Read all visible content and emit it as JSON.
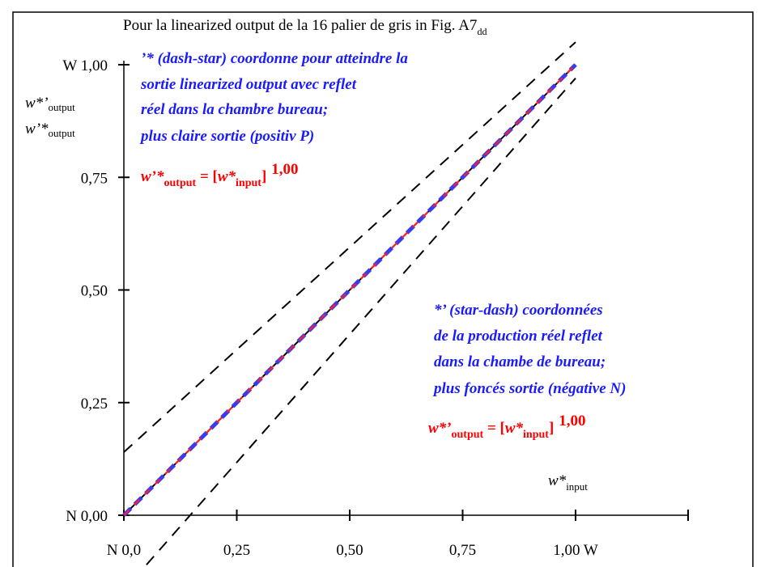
{
  "title": {
    "main": "Pour la linearized output de la 16 palier de gris in Fig. A7",
    "sub": "dd"
  },
  "y_axis": {
    "label_line1_base": "w*’",
    "label_line1_sub": "output",
    "label_line2_base": "w’*",
    "label_line2_sub": "output",
    "ticks": [
      {
        "value": 0.0,
        "label": "N 0,00"
      },
      {
        "value": 0.25,
        "label": "0,25"
      },
      {
        "value": 0.5,
        "label": "0,50"
      },
      {
        "value": 0.75,
        "label": "0,75"
      },
      {
        "value": 1.0,
        "label": "W 1,00"
      }
    ]
  },
  "x_axis": {
    "label_base": "w*",
    "label_sub": "input",
    "ticks": [
      {
        "value": 0.0,
        "label": "N  0,0"
      },
      {
        "value": 0.25,
        "label": "0,25"
      },
      {
        "value": 0.5,
        "label": "0,50"
      },
      {
        "value": 0.75,
        "label": "0,75"
      },
      {
        "value": 1.0,
        "label": "1,00  W"
      }
    ]
  },
  "annotation_top": {
    "lines": [
      "’* (dash-star) coordonne pour atteindre la",
      "sortie linearized output avec reflet",
      "réel dans la chambre bureau;",
      "plus claire sortie (positiv P)"
    ],
    "formula": {
      "lhs": "w’*",
      "lhs_sub": "output",
      "eq": " = [",
      "arg": "w*",
      "arg_sub": "input",
      "close": "]",
      "exponent": "1,00"
    }
  },
  "annotation_bottom": {
    "lines": [
      "*’ (star-dash) coordonnées",
      "de la production réel reflet",
      "dans la chambe de bureau;",
      "plus foncés sortie (négative N)"
    ],
    "formula": {
      "lhs": "w*’",
      "lhs_sub": "output",
      "eq": " = [",
      "arg": "w*",
      "arg_sub": "input",
      "close": "]",
      "exponent": "1,00"
    }
  },
  "colors": {
    "annotation_blue": "#1a1aff",
    "formula_red": "#ff0000",
    "curve_blue": "#3a3af0",
    "curve_red": "#ff2020",
    "axis": "#000000"
  },
  "chart_data": {
    "type": "line",
    "xlim": [
      0,
      1
    ],
    "ylim": [
      0,
      1
    ],
    "grid": false,
    "series": [
      {
        "style": "solid-black",
        "x": [
          0,
          1
        ],
        "y": [
          0,
          1
        ]
      },
      {
        "style": "dashed-blue",
        "x": [
          0,
          1
        ],
        "y": [
          0,
          1
        ]
      },
      {
        "style": "dashed-red",
        "x": [
          0,
          1
        ],
        "y": [
          0,
          1
        ]
      },
      {
        "style": "dashed-black",
        "x": [
          0,
          1
        ],
        "y": [
          0.14,
          1.05
        ]
      },
      {
        "style": "dashed-black",
        "x": [
          0.05,
          1
        ],
        "y": [
          -0.11,
          0.97
        ]
      }
    ]
  }
}
